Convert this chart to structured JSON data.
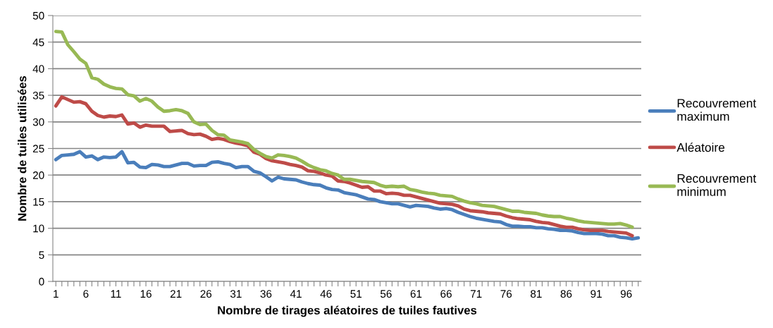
{
  "chart_data": {
    "type": "line",
    "xlabel": "Nombre de tirages aléatoires de tuiles fautives",
    "ylabel": "Nombre de tuiles utilisées",
    "categories": [
      "1",
      null,
      null,
      null,
      null,
      "6",
      null,
      null,
      null,
      null,
      "11",
      null,
      null,
      null,
      null,
      "16",
      null,
      null,
      null,
      null,
      "21",
      null,
      null,
      null,
      null,
      "26",
      null,
      null,
      null,
      null,
      "31",
      null,
      null,
      null,
      null,
      "36",
      null,
      null,
      null,
      null,
      "41",
      null,
      null,
      null,
      null,
      "46",
      null,
      null,
      null,
      null,
      "51",
      null,
      null,
      null,
      null,
      "56",
      null,
      null,
      null,
      null,
      "61",
      null,
      null,
      null,
      null,
      "66",
      null,
      null,
      null,
      null,
      "71",
      null,
      null,
      null,
      null,
      "76",
      null,
      null,
      null,
      null,
      "81",
      null,
      null,
      null,
      null,
      "86",
      null,
      null,
      null,
      null,
      "91",
      null,
      null,
      null,
      null,
      "96",
      null,
      null
    ],
    "series": [
      {
        "name": "Recouvrement maximum",
        "color": "#4a7ebb",
        "values": [
          22.9,
          23.7,
          23.8,
          23.9,
          24.4,
          23.4,
          23.6,
          22.9,
          23.4,
          23.3,
          23.4,
          24.4,
          22.3,
          22.4,
          21.5,
          21.4,
          22.0,
          21.9,
          21.6,
          21.6,
          21.9,
          22.2,
          22.2,
          21.7,
          21.8,
          21.8,
          22.4,
          22.5,
          22.2,
          22.0,
          21.4,
          21.6,
          21.6,
          20.7,
          20.4,
          19.7,
          18.9,
          19.6,
          19.3,
          19.2,
          19.1,
          18.7,
          18.4,
          18.2,
          18.1,
          17.6,
          17.3,
          17.2,
          16.7,
          16.5,
          16.3,
          15.9,
          15.5,
          15.4,
          15.0,
          14.8,
          14.6,
          14.6,
          14.3,
          14.0,
          14.3,
          14.2,
          14.1,
          13.8,
          13.6,
          13.7,
          13.5,
          13.0,
          12.6,
          12.2,
          11.9,
          11.7,
          11.5,
          11.3,
          11.2,
          10.7,
          10.4,
          10.4,
          10.3,
          10.3,
          10.1,
          10.1,
          9.9,
          9.8,
          9.6,
          9.6,
          9.5,
          9.2,
          9.0,
          9.0,
          9.0,
          8.9,
          8.6,
          8.6,
          8.3,
          8.2,
          8.0,
          8.2
        ]
      },
      {
        "name": "Aléatoire",
        "color": "#be4b48",
        "values": [
          33.0,
          34.7,
          34.2,
          33.7,
          33.8,
          33.4,
          32.0,
          31.2,
          30.9,
          31.1,
          31.0,
          31.3,
          29.6,
          29.8,
          29.0,
          29.4,
          29.2,
          29.2,
          29.2,
          28.2,
          28.3,
          28.4,
          27.8,
          27.6,
          27.7,
          27.3,
          26.7,
          26.9,
          26.7,
          26.3,
          26.0,
          25.8,
          25.5,
          24.3,
          23.9,
          23.1,
          22.7,
          22.5,
          22.3,
          22.0,
          21.8,
          21.5,
          20.8,
          20.7,
          20.4,
          20.0,
          19.8,
          18.9,
          18.8,
          18.5,
          18.1,
          17.7,
          17.8,
          17.0,
          17.0,
          16.5,
          16.6,
          16.5,
          16.2,
          16.2,
          15.9,
          15.6,
          15.3,
          15.0,
          14.7,
          14.6,
          14.5,
          14.2,
          13.6,
          13.3,
          13.2,
          13.1,
          12.9,
          12.8,
          12.7,
          12.3,
          12.0,
          11.8,
          11.7,
          11.6,
          11.3,
          11.1,
          11.0,
          10.7,
          10.4,
          10.2,
          10.2,
          9.9,
          9.7,
          9.6,
          9.6,
          9.6,
          9.4,
          9.3,
          9.2,
          9.1,
          8.6,
          null
        ]
      },
      {
        "name": "Recouvrement minimum",
        "color": "#98b954",
        "values": [
          47.0,
          46.9,
          44.5,
          43.2,
          41.8,
          41.0,
          38.3,
          38.0,
          37.1,
          36.6,
          36.3,
          36.2,
          35.1,
          34.9,
          33.9,
          34.4,
          33.9,
          32.8,
          32.0,
          32.1,
          32.3,
          32.1,
          31.6,
          30.0,
          29.5,
          29.6,
          28.4,
          27.6,
          27.5,
          26.6,
          26.4,
          26.2,
          25.9,
          24.8,
          24.1,
          23.5,
          23.2,
          23.8,
          23.7,
          23.5,
          23.2,
          22.6,
          21.9,
          21.4,
          21.0,
          20.8,
          20.3,
          20.0,
          19.2,
          19.2,
          19.0,
          18.8,
          18.7,
          18.6,
          18.1,
          17.8,
          17.9,
          17.8,
          17.9,
          17.3,
          17.1,
          16.8,
          16.6,
          16.5,
          16.2,
          16.1,
          16.0,
          15.5,
          15.1,
          14.8,
          14.6,
          14.3,
          14.2,
          14.1,
          13.8,
          13.5,
          13.2,
          13.2,
          13.0,
          12.9,
          12.8,
          12.5,
          12.3,
          12.2,
          12.2,
          11.9,
          11.7,
          11.4,
          11.2,
          11.1,
          11.0,
          10.9,
          10.8,
          10.8,
          10.9,
          10.6,
          10.2,
          null
        ]
      }
    ],
    "ylim": [
      0,
      50
    ],
    "yticks": [
      0,
      5,
      10,
      15,
      20,
      25,
      30,
      35,
      40,
      45,
      50
    ],
    "grid": "y",
    "legend": "right",
    "marker": "none",
    "line_style": "solid"
  }
}
